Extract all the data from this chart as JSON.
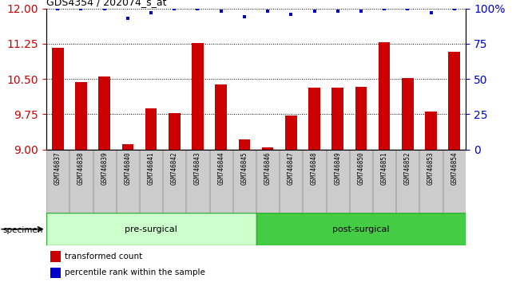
{
  "title": "GDS4354 / 202074_s_at",
  "samples": [
    "GSM746837",
    "GSM746838",
    "GSM746839",
    "GSM746840",
    "GSM746841",
    "GSM746842",
    "GSM746843",
    "GSM746844",
    "GSM746845",
    "GSM746846",
    "GSM746847",
    "GSM746848",
    "GSM746849",
    "GSM746850",
    "GSM746851",
    "GSM746852",
    "GSM746853",
    "GSM746854"
  ],
  "bar_values": [
    11.17,
    10.44,
    10.55,
    9.11,
    9.88,
    9.77,
    11.26,
    10.38,
    9.22,
    9.04,
    9.73,
    10.32,
    10.31,
    10.33,
    11.28,
    10.52,
    9.8,
    11.07
  ],
  "percentile_values": [
    100,
    100,
    100,
    93,
    97,
    100,
    100,
    98,
    94,
    98,
    96,
    98,
    98,
    98,
    100,
    100,
    97,
    100
  ],
  "pre_surgical_count": 9,
  "ylim_left": [
    9,
    12
  ],
  "ylim_right": [
    0,
    100
  ],
  "yticks_left": [
    9,
    9.75,
    10.5,
    11.25,
    12
  ],
  "yticks_right": [
    0,
    25,
    50,
    75,
    100
  ],
  "bar_color": "#cc0000",
  "dot_color": "#0000cc",
  "pre_surgical_color": "#ccffcc",
  "post_surgical_color": "#44cc44",
  "pre_surgical_label": "pre-surgical",
  "post_surgical_label": "post-surgical",
  "specimen_label": "specimen",
  "legend_bar_label": "transformed count",
  "legend_dot_label": "percentile rank within the sample",
  "axis_label_color_left": "#cc0000",
  "axis_label_color_right": "#0000cc",
  "sample_label_bg": "#cccccc",
  "sample_label_border": "#999999"
}
